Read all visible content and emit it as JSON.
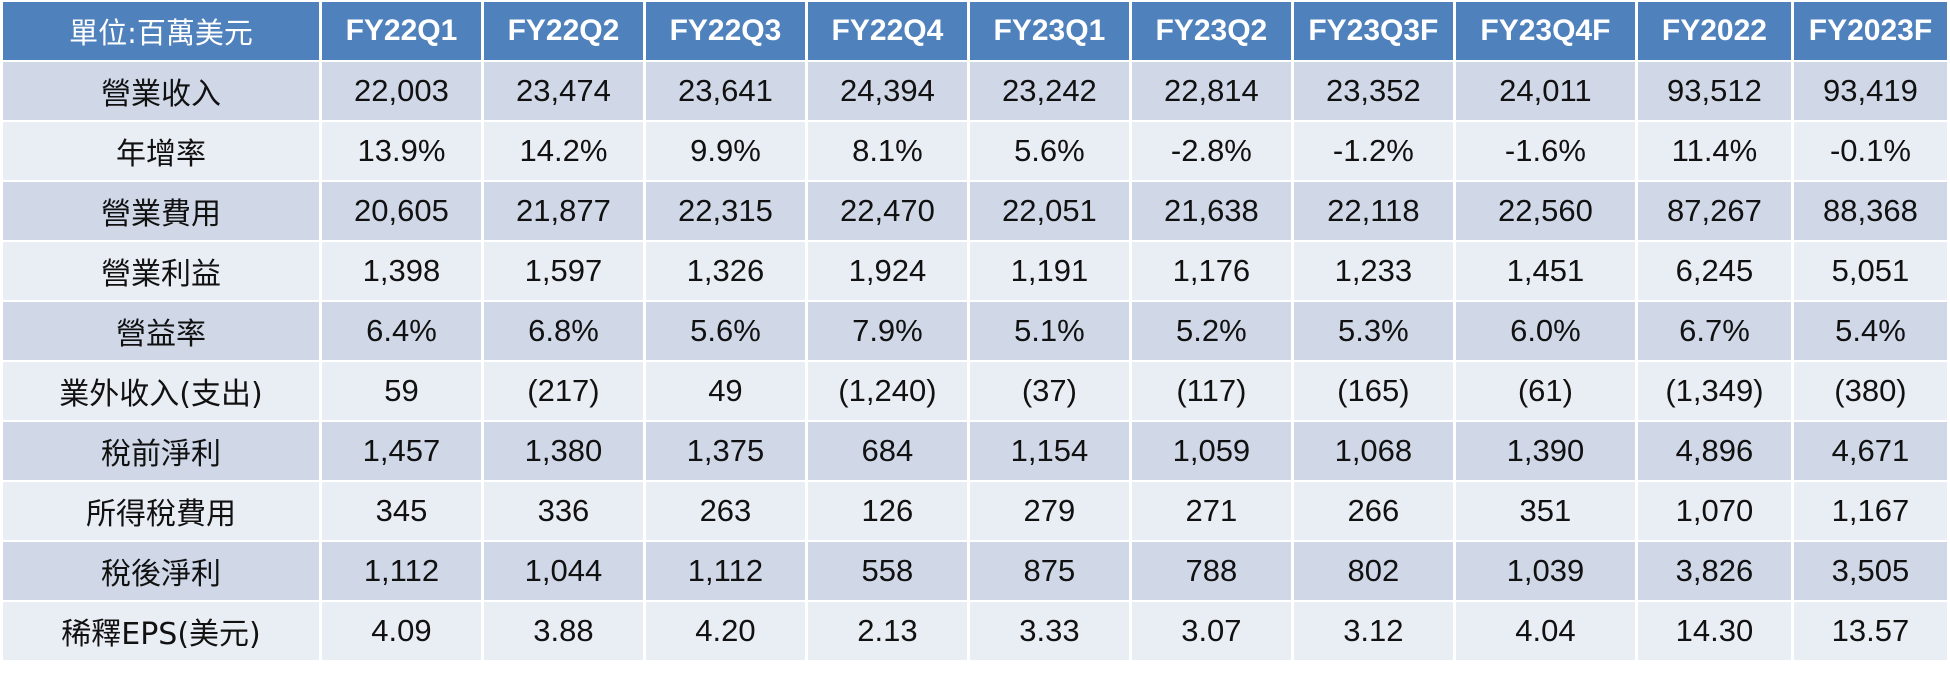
{
  "table": {
    "headers": [
      "單位:百萬美元",
      "FY22Q1",
      "FY22Q2",
      "FY22Q3",
      "FY22Q4",
      "FY23Q1",
      "FY23Q2",
      "FY23Q3F",
      "FY23Q4F",
      "FY2022",
      "FY2023F"
    ],
    "rows": [
      [
        "營業收入",
        "22,003",
        "23,474",
        "23,641",
        "24,394",
        "23,242",
        "22,814",
        "23,352",
        "24,011",
        "93,512",
        "93,419"
      ],
      [
        "年增率",
        "13.9%",
        "14.2%",
        "9.9%",
        "8.1%",
        "5.6%",
        "-2.8%",
        "-1.2%",
        "-1.6%",
        "11.4%",
        "-0.1%"
      ],
      [
        "營業費用",
        "20,605",
        "21,877",
        "22,315",
        "22,470",
        "22,051",
        "21,638",
        "22,118",
        "22,560",
        "87,267",
        "88,368"
      ],
      [
        "營業利益",
        "1,398",
        "1,597",
        "1,326",
        "1,924",
        "1,191",
        "1,176",
        "1,233",
        "1,451",
        "6,245",
        "5,051"
      ],
      [
        "營益率",
        "6.4%",
        "6.8%",
        "5.6%",
        "7.9%",
        "5.1%",
        "5.2%",
        "5.3%",
        "6.0%",
        "6.7%",
        "5.4%"
      ],
      [
        "業外收入(支出)",
        "59",
        "(217)",
        "49",
        "(1,240)",
        "(37)",
        "(117)",
        "(165)",
        "(61)",
        "(1,349)",
        "(380)"
      ],
      [
        "稅前淨利",
        "1,457",
        "1,380",
        "1,375",
        "684",
        "1,154",
        "1,059",
        "1,068",
        "1,390",
        "4,896",
        "4,671"
      ],
      [
        "所得稅費用",
        "345",
        "336",
        "263",
        "126",
        "279",
        "271",
        "266",
        "351",
        "1,070",
        "1,167"
      ],
      [
        "稅後淨利",
        "1,112",
        "1,044",
        "1,112",
        "558",
        "875",
        "788",
        "802",
        "1,039",
        "3,826",
        "3,505"
      ],
      [
        "稀釋EPS(美元)",
        "4.09",
        "3.88",
        "4.20",
        "2.13",
        "3.33",
        "3.07",
        "3.12",
        "4.04",
        "14.30",
        "13.57"
      ]
    ]
  },
  "colors": {
    "header_bg": "#4f81bd",
    "header_text": "#ffffff",
    "row_band_dark": "#d0d8e8",
    "row_band_light": "#e9edf4",
    "cell_text": "#111111"
  }
}
